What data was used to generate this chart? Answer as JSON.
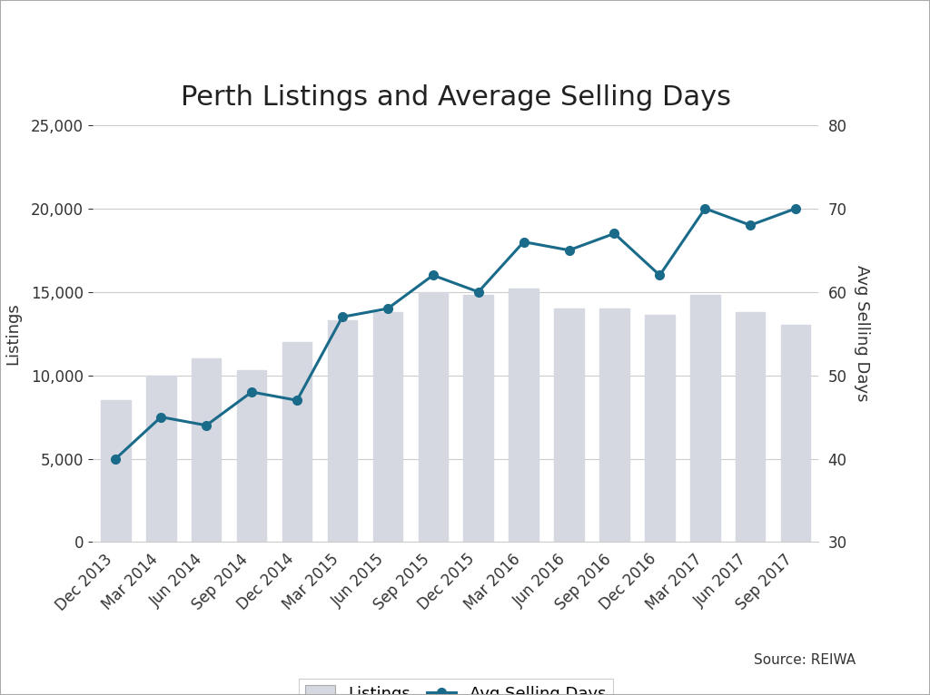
{
  "categories": [
    "Dec 2013",
    "Mar 2014",
    "Jun 2014",
    "Sep 2014",
    "Dec 2014",
    "Mar 2015",
    "Jun 2015",
    "Sep 2015",
    "Dec 2015",
    "Mar 2016",
    "Jun 2016",
    "Sep 2016",
    "Dec 2016",
    "Mar 2017",
    "Jun 2017",
    "Sep 2017"
  ],
  "listings": [
    8500,
    10000,
    11000,
    10300,
    12000,
    13300,
    13800,
    15000,
    14800,
    15200,
    14000,
    14000,
    13600,
    14800,
    13800,
    13000
  ],
  "avg_selling_days": [
    40,
    45,
    44,
    48,
    47,
    57,
    58,
    62,
    60,
    66,
    65,
    67,
    62,
    70,
    68,
    70
  ],
  "bar_color": "#d5d8e0",
  "line_color": "#1a6b8a",
  "title": "Perth Listings and Average Selling Days",
  "ylabel_left": "Listings",
  "ylabel_right": "Avg Selling Days",
  "ylim_left": [
    0,
    25000
  ],
  "ylim_right": [
    30,
    80
  ],
  "yticks_left": [
    0,
    5000,
    10000,
    15000,
    20000,
    25000
  ],
  "yticks_right": [
    30,
    40,
    50,
    60,
    70,
    80
  ],
  "title_fontsize": 22,
  "label_fontsize": 13,
  "tick_fontsize": 12,
  "legend_fontsize": 13,
  "background_color": "#ffffff",
  "source_text": "Source: REIWA",
  "grid_color": "#cccccc",
  "border_color": "#aaaaaa",
  "text_color": "#333333"
}
